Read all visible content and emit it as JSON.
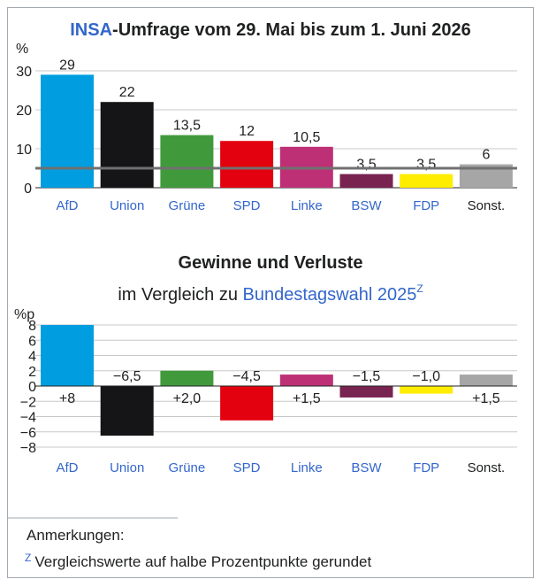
{
  "title": {
    "brand": "INSA",
    "rest": "-Umfrage vom 29. Mai bis zum 1. Juni 2026"
  },
  "gains": {
    "heading": "Gewinne und Verluste",
    "sub_prefix": "im Vergleich zu ",
    "sub_link": "Bundestagswahl 2025",
    "sup": "Z"
  },
  "notes": {
    "heading": "Anmerkungen:",
    "mark": "Z",
    "text": "Vergleichswerte auf halbe Prozentpunkte gerundet"
  },
  "colors": {
    "link": "#3366cc",
    "threshold": "#707070",
    "grid": "#c8c8c8"
  },
  "chart_data": [
    {
      "type": "bar",
      "ylabel": "%",
      "ylim": [
        0,
        30
      ],
      "yticks": [
        0,
        10,
        20,
        30
      ],
      "threshold": 5,
      "categories": [
        "AfD",
        "Union",
        "Grüne",
        "SPD",
        "Linke",
        "BSW",
        "FDP",
        "Sonst."
      ],
      "values": [
        29,
        22,
        13.5,
        12,
        10.5,
        3.5,
        3.5,
        6
      ],
      "value_labels": [
        "29",
        "22",
        "13,5",
        "12",
        "10,5",
        "3,5",
        "3,5",
        "6"
      ],
      "colors": [
        "#009ee0",
        "#151518",
        "#409a3c",
        "#e3000f",
        "#be3075",
        "#792351",
        "#ffed00",
        "#a6a6a6"
      ],
      "category_colors": [
        "#3366cc",
        "#3366cc",
        "#3366cc",
        "#3366cc",
        "#3366cc",
        "#3366cc",
        "#3366cc",
        "#202122"
      ]
    },
    {
      "type": "bar",
      "ylabel": "%p",
      "ylim": [
        -8,
        8
      ],
      "yticks": [
        8,
        6,
        4,
        2,
        0,
        -2,
        -4,
        -6,
        -8
      ],
      "ytick_labels": [
        "8",
        "6",
        "4",
        "2",
        "0",
        "−2",
        "−4",
        "−6",
        "−8"
      ],
      "categories": [
        "AfD",
        "Union",
        "Grüne",
        "SPD",
        "Linke",
        "BSW",
        "FDP",
        "Sonst."
      ],
      "values": [
        8,
        -6.5,
        2,
        -4.5,
        1.5,
        -1.5,
        -1,
        1.5
      ],
      "value_labels": [
        "+8",
        "−6,5",
        "+2,0",
        "−4,5",
        "+1,5",
        "−1,5",
        "−1,0",
        "+1,5"
      ],
      "colors": [
        "#009ee0",
        "#151518",
        "#409a3c",
        "#e3000f",
        "#be3075",
        "#792351",
        "#ffed00",
        "#a6a6a6"
      ]
    }
  ]
}
